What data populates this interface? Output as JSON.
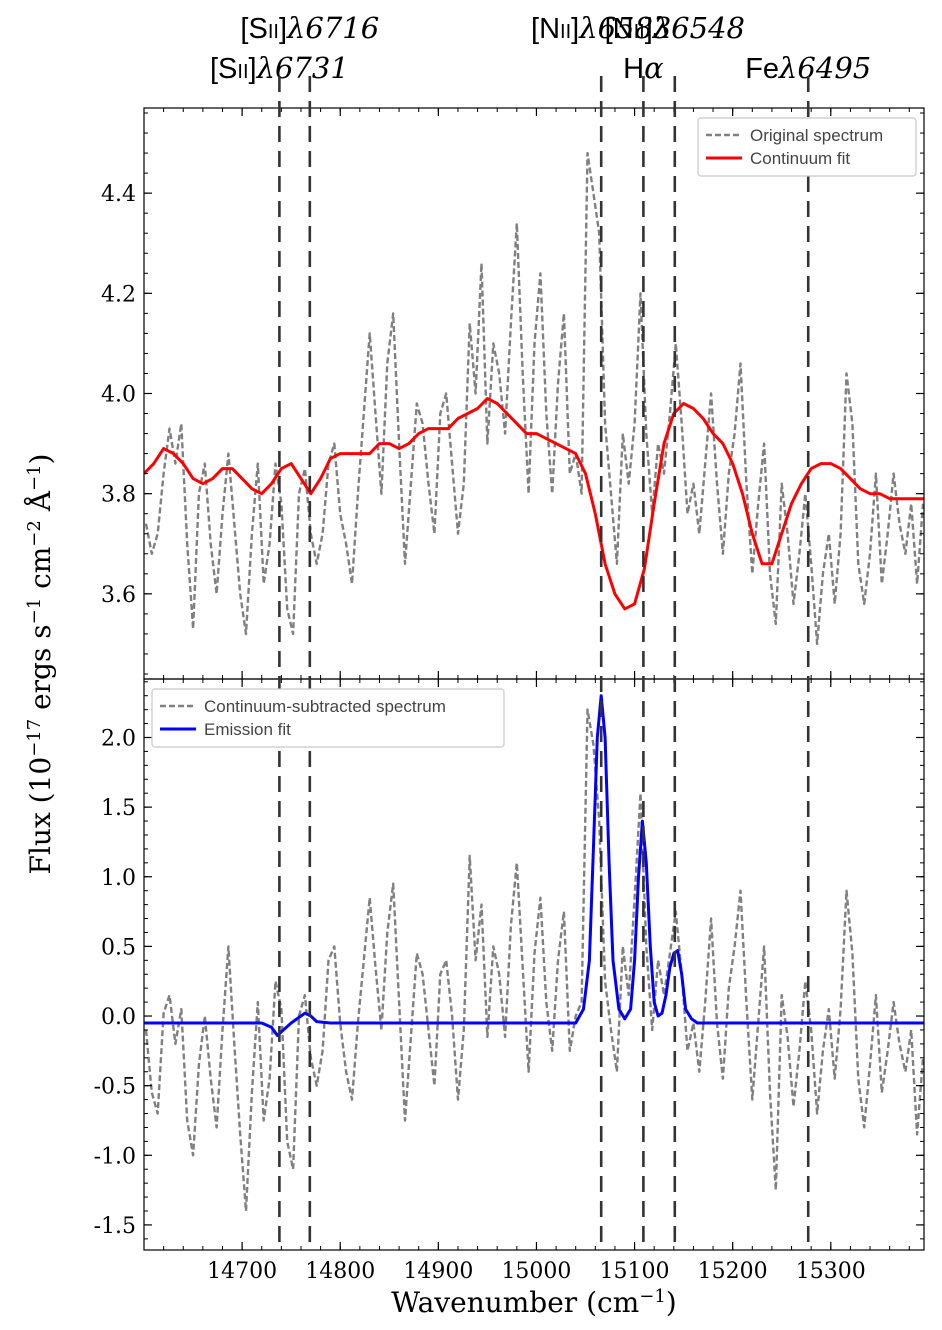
{
  "chart_data": {
    "type": "line",
    "ylabel_main": "Flux (10",
    "ylabel_exp1": "−17",
    "ylabel_mid": " ergs s",
    "ylabel_exp2": "−1",
    "ylabel_mid2": " cm",
    "ylabel_exp3": "−2",
    "ylabel_unit": " Å",
    "ylabel_exp4": "−1",
    "ylabel_end": ")",
    "xlabel_main": "Wavenumber (cm",
    "xlabel_exp": "−1",
    "xlabel_end": ")",
    "xlim": [
      14600,
      15395
    ],
    "xticks": [
      "14700",
      "14800",
      "14900",
      "15000",
      "15100",
      "15200",
      "15300"
    ],
    "lines": [
      {
        "x": 14738,
        "prefix": "[S",
        "ion": "II",
        "suffix": "]",
        "lambda": "λ6731",
        "row": 2
      },
      {
        "x": 14769,
        "prefix": "[S",
        "ion": "II",
        "suffix": "]",
        "lambda": "λ6716",
        "row": 1
      },
      {
        "x": 15066,
        "prefix": "[N",
        "ion": "II",
        "suffix": "]",
        "lambda": "λ6583",
        "row": 1
      },
      {
        "x": 15109,
        "prefix": "H",
        "ion": "",
        "suffix": "",
        "lambda": "α",
        "row": 2
      },
      {
        "x": 15141,
        "prefix": "[N",
        "ion": "II",
        "suffix": "]",
        "lambda": "λ6548",
        "row": 1
      },
      {
        "x": 15277,
        "prefix": "Fe",
        "ion": "",
        "suffix": "",
        "lambda": "λ6495",
        "row": 2
      }
    ],
    "panels": [
      {
        "ylim": [
          3.43,
          4.57
        ],
        "yticks": [
          "3.6",
          "3.8",
          "4.0",
          "4.2",
          "4.4"
        ],
        "legend": {
          "position": "top-right",
          "entries": [
            {
              "label": "Original spectrum",
              "color": "#808080",
              "style": "dashed"
            },
            {
              "label": "Continuum fit",
              "color": "#ff0000",
              "style": "solid"
            }
          ]
        },
        "series": [
          {
            "name": "Original spectrum",
            "color": "#808080",
            "style": "dashed",
            "x": [
              14602,
              14608,
              14614,
              14620,
              14626,
              14632,
              14638,
              14644,
              14650,
              14656,
              14662,
              14668,
              14674,
              14680,
              14686,
              14692,
              14698,
              14704,
              14710,
              14716,
              14722,
              14728,
              14734,
              14740,
              14746,
              14752,
              14758,
              14764,
              14770,
              14776,
              14782,
              14788,
              14794,
              14800,
              14806,
              14812,
              14818,
              14824,
              14830,
              14836,
              14842,
              14848,
              14854,
              14860,
              14866,
              14872,
              14878,
              14884,
              14890,
              14896,
              14902,
              14908,
              14914,
              14920,
              14926,
              14932,
              14938,
              14944,
              14950,
              14956,
              14962,
              14968,
              14974,
              14980,
              14986,
              14992,
              14998,
              15004,
              15010,
              15016,
              15022,
              15028,
              15034,
              15040,
              15046,
              15052,
              15058,
              15064,
              15070,
              15076,
              15082,
              15088,
              15094,
              15100,
              15106,
              15112,
              15118,
              15124,
              15130,
              15136,
              15142,
              15148,
              15154,
              15160,
              15166,
              15172,
              15178,
              15184,
              15190,
              15196,
              15202,
              15208,
              15214,
              15220,
              15226,
              15232,
              15238,
              15244,
              15250,
              15256,
              15262,
              15268,
              15274,
              15280,
              15286,
              15292,
              15298,
              15304,
              15310,
              15316,
              15322,
              15328,
              15334,
              15340,
              15346,
              15352,
              15358,
              15364,
              15370,
              15376,
              15382,
              15388,
              15394
            ],
            "y": [
              3.74,
              3.68,
              3.72,
              3.84,
              3.93,
              3.86,
              3.94,
              3.7,
              3.53,
              3.8,
              3.86,
              3.7,
              3.6,
              3.76,
              3.88,
              3.74,
              3.6,
              3.52,
              3.72,
              3.86,
              3.62,
              3.7,
              3.86,
              3.78,
              3.57,
              3.52,
              3.8,
              3.85,
              3.72,
              3.66,
              3.72,
              3.86,
              3.9,
              3.76,
              3.7,
              3.62,
              3.8,
              3.96,
              4.12,
              3.96,
              3.8,
              4.06,
              4.16,
              3.9,
              3.66,
              3.82,
              3.98,
              3.94,
              3.82,
              3.72,
              3.96,
              4.0,
              3.86,
              3.72,
              3.82,
              4.14,
              4.0,
              4.26,
              3.9,
              4.1,
              4.04,
              3.92,
              4.14,
              4.34,
              4.04,
              3.8,
              4.1,
              4.24,
              3.96,
              3.8,
              4.02,
              4.16,
              3.84,
              3.88,
              3.8,
              4.48,
              4.4,
              4.32,
              3.94,
              3.8,
              3.66,
              3.92,
              3.82,
              3.94,
              4.2,
              3.92,
              3.76,
              3.9,
              3.84,
              3.96,
              4.1,
              3.94,
              3.76,
              3.82,
              3.72,
              3.86,
              4.0,
              3.82,
              3.68,
              3.84,
              3.92,
              4.06,
              3.82,
              3.64,
              3.78,
              3.9,
              3.64,
              3.54,
              3.82,
              3.72,
              3.58,
              3.68,
              3.8,
              3.66,
              3.5,
              3.64,
              3.72,
              3.58,
              3.72,
              4.04,
              3.94,
              3.66,
              3.58,
              3.68,
              3.84,
              3.62,
              3.72,
              3.84,
              3.74,
              3.68,
              3.78,
              3.62,
              3.78
            ]
          },
          {
            "name": "Continuum fit",
            "color": "#ff0000",
            "style": "solid",
            "x": [
              14600,
              14610,
              14620,
              14630,
              14640,
              14650,
              14660,
              14670,
              14680,
              14690,
              14700,
              14710,
              14720,
              14730,
              14740,
              14750,
              14760,
              14770,
              14780,
              14790,
              14800,
              14810,
              14820,
              14830,
              14840,
              14850,
              14860,
              14870,
              14880,
              14890,
              14900,
              14910,
              14920,
              14930,
              14940,
              14950,
              14960,
              14970,
              14980,
              14990,
              15000,
              15010,
              15020,
              15030,
              15040,
              15050,
              15060,
              15070,
              15080,
              15090,
              15100,
              15110,
              15120,
              15130,
              15140,
              15150,
              15160,
              15170,
              15180,
              15190,
              15200,
              15210,
              15220,
              15230,
              15240,
              15250,
              15260,
              15270,
              15280,
              15290,
              15300,
              15310,
              15320,
              15330,
              15340,
              15350,
              15360,
              15370,
              15380,
              15390,
              15395
            ],
            "y": [
              3.84,
              3.86,
              3.89,
              3.88,
              3.86,
              3.83,
              3.82,
              3.83,
              3.85,
              3.85,
              3.83,
              3.81,
              3.8,
              3.82,
              3.85,
              3.86,
              3.83,
              3.8,
              3.83,
              3.87,
              3.88,
              3.88,
              3.88,
              3.88,
              3.9,
              3.9,
              3.89,
              3.9,
              3.92,
              3.93,
              3.93,
              3.93,
              3.95,
              3.96,
              3.97,
              3.99,
              3.98,
              3.96,
              3.94,
              3.92,
              3.92,
              3.91,
              3.9,
              3.89,
              3.88,
              3.84,
              3.76,
              3.66,
              3.6,
              3.57,
              3.58,
              3.65,
              3.78,
              3.9,
              3.96,
              3.98,
              3.97,
              3.95,
              3.92,
              3.9,
              3.86,
              3.8,
              3.72,
              3.66,
              3.66,
              3.72,
              3.78,
              3.82,
              3.85,
              3.86,
              3.86,
              3.85,
              3.83,
              3.81,
              3.8,
              3.8,
              3.79,
              3.79,
              3.79,
              3.79,
              3.79
            ]
          }
        ]
      },
      {
        "ylim": [
          -1.68,
          2.42
        ],
        "yticks": [
          "-1.5",
          "-1.0",
          "-0.5",
          "0.0",
          "0.5",
          "1.0",
          "1.5",
          "2.0"
        ],
        "legend": {
          "position": "top-left",
          "entries": [
            {
              "label": "Continuum-subtracted spectrum",
              "color": "#808080",
              "style": "dashed"
            },
            {
              "label": "Emission fit",
              "color": "#0000ff",
              "style": "solid"
            }
          ]
        },
        "series": [
          {
            "name": "Continuum-subtracted spectrum",
            "color": "#808080",
            "style": "dashed",
            "x": [
              14602,
              14608,
              14614,
              14620,
              14626,
              14632,
              14638,
              14644,
              14650,
              14656,
              14662,
              14668,
              14674,
              14680,
              14686,
              14692,
              14698,
              14704,
              14710,
              14716,
              14722,
              14728,
              14734,
              14740,
              14746,
              14752,
              14758,
              14764,
              14770,
              14776,
              14782,
              14788,
              14794,
              14800,
              14806,
              14812,
              14818,
              14824,
              14830,
              14836,
              14842,
              14848,
              14854,
              14860,
              14866,
              14872,
              14878,
              14884,
              14890,
              14896,
              14902,
              14908,
              14914,
              14920,
              14926,
              14932,
              14938,
              14944,
              14950,
              14956,
              14962,
              14968,
              14974,
              14980,
              14986,
              14992,
              14998,
              15004,
              15010,
              15016,
              15022,
              15028,
              15034,
              15040,
              15046,
              15052,
              15058,
              15064,
              15070,
              15076,
              15082,
              15088,
              15094,
              15100,
              15106,
              15112,
              15118,
              15124,
              15130,
              15136,
              15142,
              15148,
              15154,
              15160,
              15166,
              15172,
              15178,
              15184,
              15190,
              15196,
              15202,
              15208,
              15214,
              15220,
              15226,
              15232,
              15238,
              15244,
              15250,
              15256,
              15262,
              15268,
              15274,
              15280,
              15286,
              15292,
              15298,
              15304,
              15310,
              15316,
              15322,
              15328,
              15334,
              15340,
              15346,
              15352,
              15358,
              15364,
              15370,
              15376,
              15382,
              15388,
              15394
            ],
            "y": [
              -0.1,
              -0.55,
              -0.7,
              0.02,
              0.15,
              -0.2,
              0.05,
              -0.75,
              -1.0,
              -0.35,
              0.0,
              -0.45,
              -0.8,
              -0.1,
              0.5,
              -0.2,
              -0.85,
              -1.4,
              -0.55,
              0.1,
              -0.75,
              -0.45,
              0.25,
              0.05,
              -0.9,
              -1.1,
              0.0,
              0.15,
              -0.3,
              -0.5,
              -0.25,
              0.4,
              0.5,
              -0.05,
              -0.4,
              -0.6,
              -0.05,
              0.4,
              0.85,
              0.35,
              -0.1,
              0.6,
              0.95,
              0.1,
              -0.75,
              -0.15,
              0.45,
              0.3,
              -0.1,
              -0.5,
              0.3,
              0.4,
              0.0,
              -0.6,
              -0.1,
              1.15,
              0.4,
              0.8,
              -0.15,
              0.5,
              0.3,
              -0.15,
              0.65,
              1.1,
              0.35,
              -0.4,
              0.45,
              0.85,
              0.1,
              -0.25,
              0.4,
              0.75,
              -0.25,
              0.0,
              0.1,
              2.2,
              1.95,
              1.4,
              0.25,
              -0.1,
              -0.4,
              0.5,
              0.15,
              0.85,
              1.6,
              0.5,
              -0.1,
              0.4,
              0.15,
              0.45,
              0.75,
              0.3,
              -0.25,
              -0.05,
              -0.4,
              0.1,
              0.7,
              -0.05,
              -0.45,
              0.2,
              0.5,
              0.9,
              0.1,
              -0.6,
              -0.05,
              0.5,
              -0.55,
              -1.25,
              0.15,
              -0.15,
              -0.65,
              -0.25,
              0.25,
              -0.1,
              -0.7,
              -0.25,
              0.05,
              -0.45,
              0.05,
              0.9,
              0.45,
              -0.45,
              -0.8,
              -0.35,
              0.15,
              -0.55,
              -0.25,
              0.1,
              -0.2,
              -0.4,
              -0.1,
              -0.85,
              -0.3
            ]
          },
          {
            "name": "Emission fit",
            "color": "#0000ff",
            "style": "solid",
            "x": [
              14600,
              14720,
              14730,
              14736,
              14742,
              14750,
              14758,
              14764,
              14770,
              14776,
              14790,
              15040,
              15048,
              15054,
              15058,
              15062,
              15066,
              15070,
              15074,
              15078,
              15084,
              15090,
              15096,
              15100,
              15104,
              15108,
              15112,
              15116,
              15120,
              15124,
              15128,
              15132,
              15136,
              15140,
              15144,
              15148,
              15152,
              15158,
              15164,
              15395
            ],
            "y": [
              -0.05,
              -0.05,
              -0.08,
              -0.14,
              -0.1,
              -0.05,
              -0.01,
              0.02,
              0.0,
              -0.04,
              -0.05,
              -0.05,
              0.05,
              0.4,
              1.2,
              2.0,
              2.3,
              2.0,
              1.1,
              0.4,
              0.05,
              -0.02,
              0.05,
              0.4,
              1.0,
              1.4,
              1.1,
              0.5,
              0.1,
              0.0,
              0.02,
              0.15,
              0.35,
              0.45,
              0.47,
              0.3,
              0.05,
              -0.02,
              -0.05,
              -0.05
            ]
          }
        ]
      }
    ]
  }
}
